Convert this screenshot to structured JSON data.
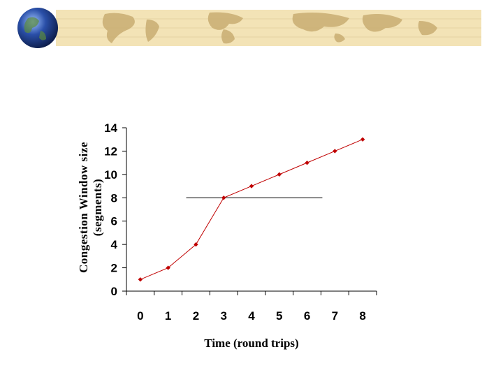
{
  "chart_data": {
    "type": "line",
    "x": [
      0,
      1,
      2,
      3,
      4,
      5,
      6,
      7,
      8
    ],
    "values": [
      1,
      2,
      4,
      8,
      9,
      10,
      11,
      12,
      13
    ],
    "xlabel": "Time (round trips)",
    "ylabel_line1": "Congestion Window size",
    "ylabel_line2": "(segments)",
    "ylim": [
      0,
      14
    ],
    "yticks": [
      0,
      2,
      4,
      6,
      8,
      10,
      12,
      14
    ],
    "xticks": [
      "0",
      "1",
      "2",
      "3",
      "4",
      "5",
      "6",
      "7",
      "8"
    ],
    "threshold": 8,
    "grid": false,
    "series_color": "#c00000",
    "threshold_color": "#000000"
  },
  "colors": {
    "banner_bg": "#f3e3b6",
    "banner_map": "#c9ad72",
    "globe": "#2a4fa8"
  },
  "icons": {
    "logo": "globe-icon"
  }
}
